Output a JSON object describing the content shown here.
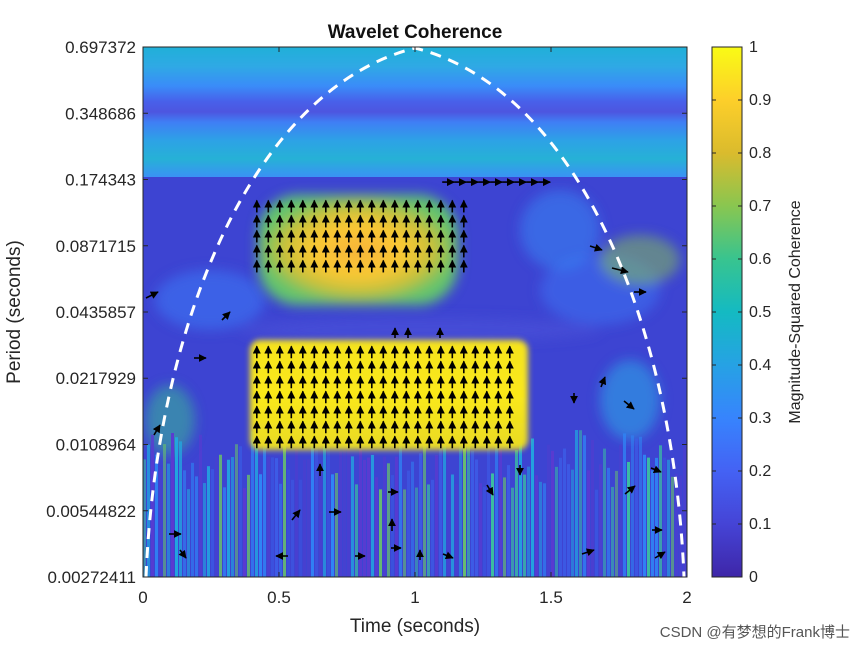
{
  "chart_data": {
    "type": "heatmap",
    "title": "Wavelet Coherence",
    "xlabel": "Time (seconds)",
    "ylabel": "Period (seconds)",
    "xlim": [
      0,
      2
    ],
    "x_ticks": [
      "0",
      "0.5",
      "1",
      "1.5",
      "2"
    ],
    "y_scale": "log2",
    "ylim": [
      0.00272411,
      0.697372
    ],
    "y_ticks": [
      "0.697372",
      "0.348686",
      "0.174343",
      "0.0871715",
      "0.0435857",
      "0.0217929",
      "0.0108964",
      "0.00544822",
      "0.00272411"
    ],
    "colorbar": {
      "label": "Magnitude-Squared Coherence",
      "range": [
        0,
        1
      ],
      "ticks": [
        "0",
        "0.1",
        "0.2",
        "0.3",
        "0.4",
        "0.5",
        "0.6",
        "0.7",
        "0.8",
        "0.9",
        "1"
      ]
    },
    "regions": [
      {
        "name": "high coherence block",
        "time": [
          0.4,
          1.4
        ],
        "period": [
          0.0108964,
          0.0311
        ],
        "coherence": 1.0,
        "phase_arrow": "up"
      },
      {
        "name": "high coherence block",
        "time": [
          0.4,
          1.2
        ],
        "period": [
          0.0588,
          0.143
        ],
        "coherence": 0.85,
        "phase_arrow": "up"
      },
      {
        "name": "phase arrows",
        "time": [
          1.1,
          1.5
        ],
        "period": [
          0.16,
          0.18
        ],
        "phase_arrow": "right"
      }
    ],
    "cone_of_influence": {
      "style": "white dashed",
      "apex_time": 1,
      "apex_period": 0.697372
    }
  },
  "watermark": "CSDN @有梦想的Frank博士",
  "colors": {
    "background": "#ffffff",
    "coi": "#ffffff",
    "arrow": "#000000"
  }
}
